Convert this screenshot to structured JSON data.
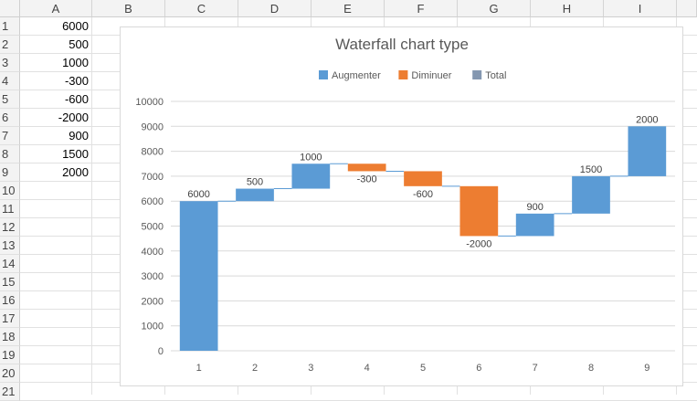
{
  "spreadsheet": {
    "columns": [
      "A",
      "B",
      "C",
      "D",
      "E",
      "F",
      "G",
      "H",
      "I"
    ],
    "rows": [
      "1",
      "2",
      "3",
      "4",
      "5",
      "6",
      "7",
      "8",
      "9",
      "10",
      "11",
      "12",
      "13",
      "14",
      "15",
      "16",
      "17",
      "18",
      "19",
      "20",
      "21"
    ],
    "column_a_values": [
      "6000",
      "500",
      "1000",
      "-300",
      "-600",
      "-2000",
      "900",
      "1500",
      "2000"
    ]
  },
  "chart_data": {
    "type": "bar",
    "subtype": "waterfall",
    "title": "Waterfall chart type",
    "legend": {
      "placement": "top",
      "entries": [
        {
          "name": "Augmenter",
          "color": "#5b9bd5"
        },
        {
          "name": "Diminuer",
          "color": "#ed7d31"
        },
        {
          "name": "Total",
          "color": "#8497b0"
        }
      ]
    },
    "categories": [
      "1",
      "2",
      "3",
      "4",
      "5",
      "6",
      "7",
      "8",
      "9"
    ],
    "values": [
      6000,
      500,
      1000,
      -300,
      -600,
      -2000,
      900,
      1500,
      2000
    ],
    "data_labels": [
      "6000",
      "500",
      "1000",
      "-300",
      "-600",
      "-2000",
      "900",
      "1500",
      "2000"
    ],
    "y_ticks": [
      "0",
      "1000",
      "2000",
      "3000",
      "4000",
      "5000",
      "6000",
      "7000",
      "8000",
      "9000",
      "10000"
    ],
    "ylim": [
      0,
      10000
    ],
    "grid": true,
    "colors": {
      "increase": "#5b9bd5",
      "decrease": "#ed7d31",
      "connector": "#5b9bd5",
      "gridline": "#d9d9d9"
    }
  }
}
